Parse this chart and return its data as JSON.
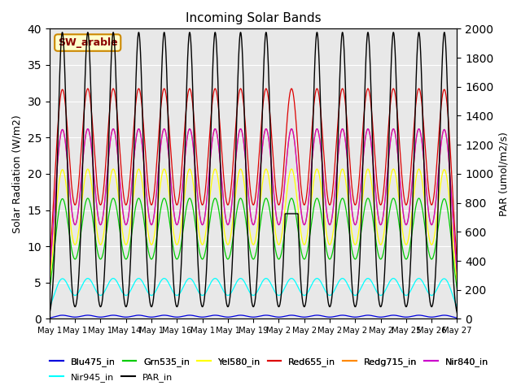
{
  "title": "Incoming Solar Bands",
  "ylabel_left": "Solar Radiation (W/m2)",
  "ylabel_right": "PAR (umol/m2/s)",
  "annotation": "SW_arable",
  "ylim_left": [
    0,
    40
  ],
  "ylim_right": [
    0,
    2000
  ],
  "num_days": 16,
  "series": [
    {
      "name": "Blu475_in",
      "color": "#0000dd",
      "peak": 0.5,
      "sigma": 0.3,
      "right_axis": false
    },
    {
      "name": "Grn535_in",
      "color": "#00cc00",
      "peak": 16.5,
      "sigma": 0.3,
      "right_axis": false
    },
    {
      "name": "Yel580_in",
      "color": "#ffff00",
      "peak": 20.5,
      "sigma": 0.3,
      "right_axis": false
    },
    {
      "name": "Red655_in",
      "color": "#dd0000",
      "peak": 31.5,
      "sigma": 0.3,
      "right_axis": false
    },
    {
      "name": "Redg715_in",
      "color": "#ff8800",
      "peak": 26.0,
      "sigma": 0.3,
      "right_axis": false
    },
    {
      "name": "Nir840_in",
      "color": "#cc00cc",
      "peak": 26.0,
      "sigma": 0.3,
      "right_axis": false
    },
    {
      "name": "Nir945_in",
      "color": "#00ffff",
      "peak": 5.5,
      "sigma": 0.32,
      "right_axis": false
    },
    {
      "name": "PAR_in",
      "color": "#000000",
      "peak": 1975,
      "sigma": 0.18,
      "right_axis": true
    }
  ],
  "background_color": "#e8e8e8",
  "fig_facecolor": "#ffffff",
  "tick_label_dates": [
    "May 1",
    "May 1",
    "May 14",
    "May 15",
    "May 16",
    "May 1",
    "May 1",
    "May 19",
    "May 2",
    "May 2",
    "May 2",
    "May 2",
    "May 2",
    "May 25",
    "May 26",
    "May 27"
  ],
  "xtick_labels": [
    "May 1",
    "May 1",
    "May 14",
    "May 15",
    "May 16",
    "May 1",
    "May 1",
    "May 19",
    "May 2",
    "May 2",
    "May 2",
    "May 2",
    "May 2",
    "May 25",
    "May 26",
    "May 27"
  ],
  "yticks_left": [
    0,
    5,
    10,
    15,
    20,
    25,
    30,
    35,
    40
  ],
  "yticks_right": [
    0,
    200,
    400,
    600,
    800,
    1000,
    1200,
    1400,
    1600,
    1800,
    2000
  ],
  "legend_ncol_row1": 6,
  "legend_ncol_row2": 2
}
